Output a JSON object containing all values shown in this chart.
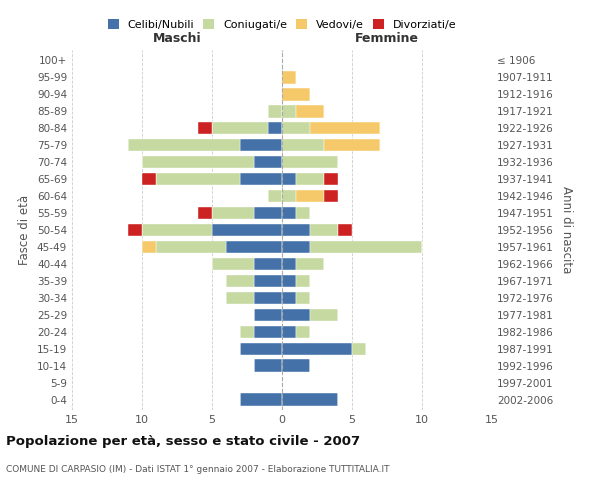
{
  "age_groups": [
    "0-4",
    "5-9",
    "10-14",
    "15-19",
    "20-24",
    "25-29",
    "30-34",
    "35-39",
    "40-44",
    "45-49",
    "50-54",
    "55-59",
    "60-64",
    "65-69",
    "70-74",
    "75-79",
    "80-84",
    "85-89",
    "90-94",
    "95-99",
    "100+"
  ],
  "birth_years": [
    "2002-2006",
    "1997-2001",
    "1992-1996",
    "1987-1991",
    "1982-1986",
    "1977-1981",
    "1972-1976",
    "1967-1971",
    "1962-1966",
    "1957-1961",
    "1952-1956",
    "1947-1951",
    "1942-1946",
    "1937-1941",
    "1932-1936",
    "1927-1931",
    "1922-1926",
    "1917-1921",
    "1912-1916",
    "1907-1911",
    "≤ 1906"
  ],
  "male": {
    "celibi": [
      3,
      0,
      2,
      3,
      2,
      2,
      2,
      2,
      2,
      4,
      5,
      2,
      0,
      3,
      2,
      3,
      1,
      0,
      0,
      0,
      0
    ],
    "coniugati": [
      0,
      0,
      0,
      0,
      1,
      0,
      2,
      2,
      3,
      5,
      5,
      3,
      1,
      6,
      8,
      8,
      4,
      1,
      0,
      0,
      0
    ],
    "vedovi": [
      0,
      0,
      0,
      0,
      0,
      0,
      0,
      0,
      0,
      1,
      0,
      0,
      0,
      0,
      0,
      0,
      0,
      0,
      0,
      0,
      0
    ],
    "divorziati": [
      0,
      0,
      0,
      0,
      0,
      0,
      0,
      0,
      0,
      0,
      1,
      1,
      0,
      1,
      0,
      0,
      1,
      0,
      0,
      0,
      0
    ]
  },
  "female": {
    "nubili": [
      4,
      0,
      2,
      5,
      1,
      2,
      1,
      1,
      1,
      2,
      2,
      1,
      0,
      1,
      0,
      0,
      0,
      0,
      0,
      0,
      0
    ],
    "coniugate": [
      0,
      0,
      0,
      1,
      1,
      2,
      1,
      1,
      2,
      8,
      2,
      1,
      1,
      2,
      4,
      3,
      2,
      1,
      0,
      0,
      0
    ],
    "vedove": [
      0,
      0,
      0,
      0,
      0,
      0,
      0,
      0,
      0,
      0,
      0,
      0,
      2,
      0,
      0,
      4,
      5,
      2,
      2,
      1,
      0
    ],
    "divorziate": [
      0,
      0,
      0,
      0,
      0,
      0,
      0,
      0,
      0,
      0,
      1,
      0,
      1,
      1,
      0,
      0,
      0,
      0,
      0,
      0,
      0
    ]
  },
  "colors": {
    "celibi_nubili": "#4472a8",
    "coniugati": "#c5d9a0",
    "vedovi": "#f5c96a",
    "divorziati": "#cc2222"
  },
  "xlim": 15,
  "title": "Popolazione per età, sesso e stato civile - 2007",
  "subtitle": "COMUNE DI CARPASIO (IM) - Dati ISTAT 1° gennaio 2007 - Elaborazione TUTTITALIA.IT",
  "xlabel_left": "Maschi",
  "xlabel_right": "Femmine",
  "ylabel": "Fasce di età",
  "ylabel_right": "Anni di nascita",
  "legend_labels": [
    "Celibi/Nubili",
    "Coniugati/e",
    "Vedovi/e",
    "Divorziati/e"
  ],
  "grid_color": "#cccccc"
}
